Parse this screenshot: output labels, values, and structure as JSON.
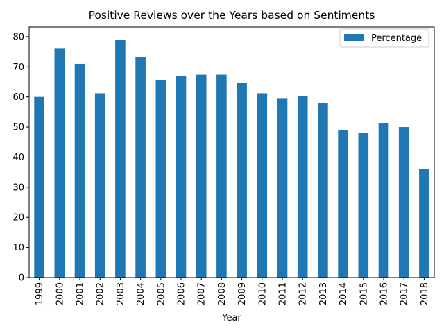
{
  "chart_data": {
    "type": "bar",
    "title": "Positive Reviews over the Years based on Sentiments",
    "xlabel": "Year",
    "ylabel": "",
    "categories": [
      "1999",
      "2000",
      "2001",
      "2002",
      "2003",
      "2004",
      "2005",
      "2006",
      "2007",
      "2008",
      "2009",
      "2010",
      "2011",
      "2012",
      "2013",
      "2014",
      "2015",
      "2016",
      "2017",
      "2018"
    ],
    "series": [
      {
        "name": "Percentage",
        "color": "#1f77b4",
        "values": [
          60.0,
          76.2,
          71.0,
          61.2,
          79.0,
          73.3,
          65.6,
          67.0,
          67.4,
          67.4,
          64.7,
          61.2,
          59.6,
          60.2,
          58.0,
          49.1,
          48.0,
          51.2,
          50.0,
          36.0
        ]
      }
    ],
    "ylim": [
      0,
      83.2
    ],
    "yticks": [
      0,
      10,
      20,
      30,
      40,
      50,
      60,
      70,
      80
    ],
    "grid": false,
    "legend_position": "top-right"
  }
}
